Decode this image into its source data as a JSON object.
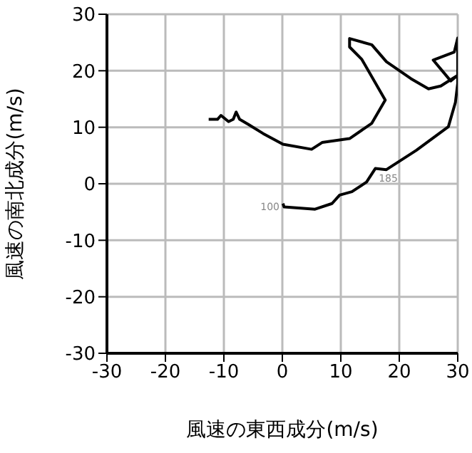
{
  "chart_data": {
    "type": "line",
    "xlabel": "風速の東西成分(m/s)",
    "ylabel": "風速の南北成分(m/s)",
    "xlim": [
      -30,
      30
    ],
    "ylim": [
      -30,
      30
    ],
    "xticks": [
      -30,
      -20,
      -10,
      0,
      10,
      20,
      30
    ],
    "yticks": [
      -30,
      -20,
      -10,
      0,
      10,
      20,
      30
    ],
    "grid": true,
    "marker": "none",
    "line_style": "solid",
    "series": [
      {
        "color": "#000000",
        "x": [
          0.1,
          0.3,
          5.6,
          8.5,
          9.8,
          11.9,
          14.4,
          15.9,
          17.8,
          22.9,
          28.4,
          29.6,
          30.0,
          30.0,
          29.4,
          25.8,
          28.8,
          30.0,
          27.1,
          25.0,
          22.0,
          17.8,
          15.3,
          11.5,
          11.5,
          13.6,
          17.6,
          15.3,
          11.5,
          6.8,
          5.0,
          0.1,
          -3.3,
          -5.8,
          -7.3,
          -7.9,
          -8.4,
          -9.2,
          -10.5,
          -11.1,
          -12.6
        ],
        "values": [
          -3.5,
          -4.1,
          -4.5,
          -3.5,
          -2.0,
          -1.4,
          0.3,
          2.7,
          2.5,
          5.9,
          10.1,
          14.4,
          17.8,
          25.8,
          23.3,
          21.9,
          18.2,
          19.2,
          17.3,
          16.8,
          18.6,
          21.6,
          24.6,
          25.7,
          24.2,
          22.0,
          14.8,
          10.7,
          8.0,
          7.3,
          6.1,
          7.0,
          8.9,
          10.5,
          11.4,
          12.7,
          11.4,
          11.0,
          12.1,
          11.4,
          11.4
        ]
      }
    ],
    "annotations": [
      {
        "text": "100",
        "x": 0,
        "y": -4
      },
      {
        "text": "185",
        "x": 16,
        "y": 1
      }
    ]
  }
}
